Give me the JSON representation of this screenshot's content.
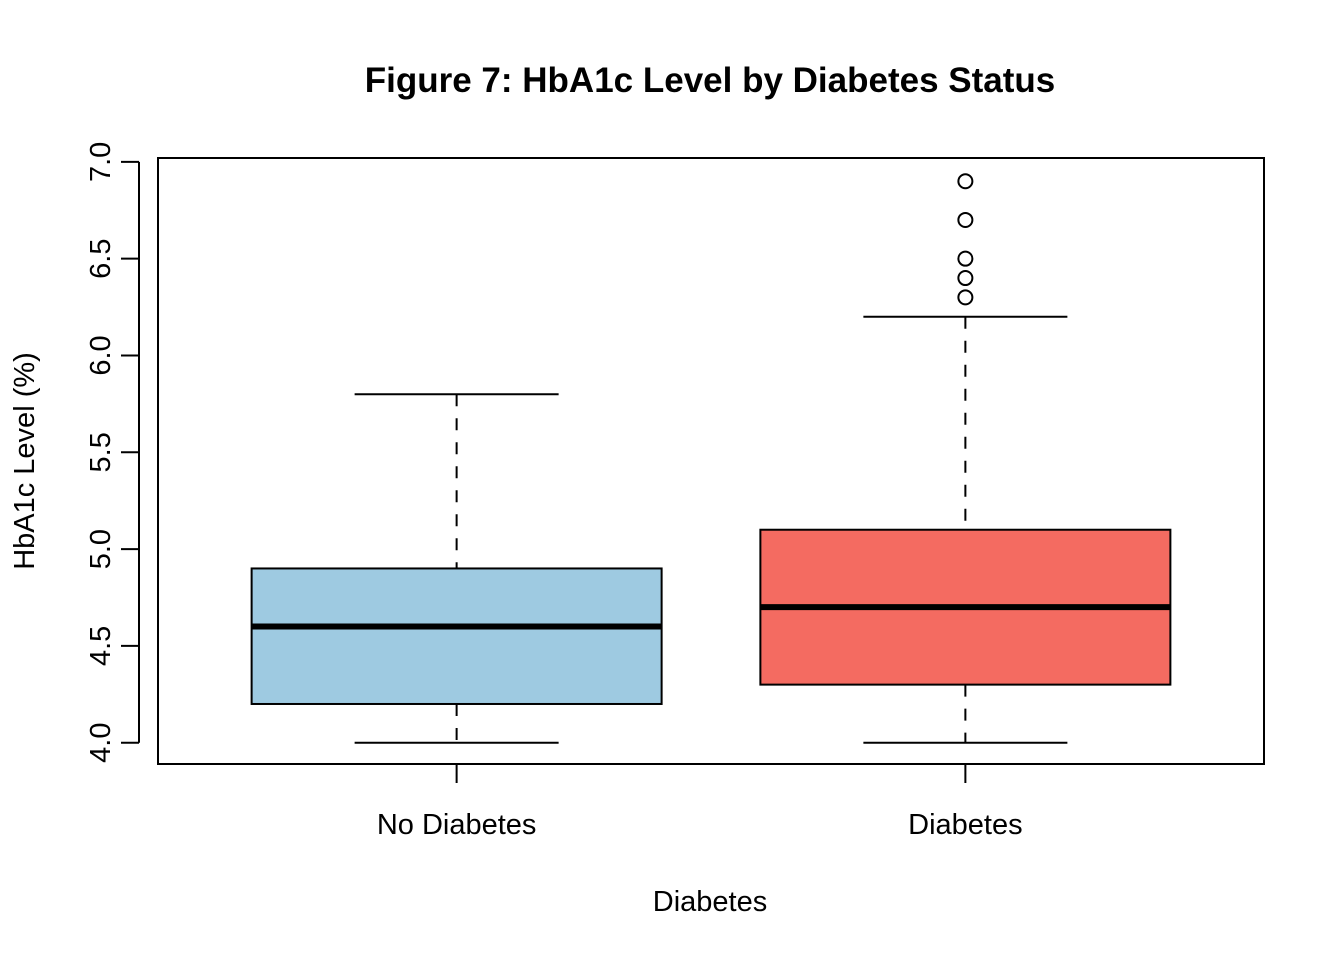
{
  "chart_data": {
    "type": "boxplot",
    "title": "Figure 7: HbA1c Level by Diabetes Status",
    "xlabel": "Diabetes",
    "ylabel": "HbA1c Level (%)",
    "ylim": [
      3.89,
      7.02
    ],
    "yticks": [
      4.0,
      4.5,
      5.0,
      5.5,
      6.0,
      6.5,
      7.0
    ],
    "ytick_labels": [
      "4.0",
      "4.5",
      "5.0",
      "5.5",
      "6.0",
      "6.5",
      "7.0"
    ],
    "categories": [
      "No Diabetes",
      "Diabetes"
    ],
    "grid": false,
    "boxes": [
      {
        "category": "No Diabetes",
        "color": "#9ecae1",
        "whisker_low": 4.0,
        "q1": 4.2,
        "median": 4.6,
        "q3": 4.9,
        "whisker_high": 5.8,
        "outliers": []
      },
      {
        "category": "Diabetes",
        "color": "#f46b61",
        "whisker_low": 4.0,
        "q1": 4.3,
        "median": 4.7,
        "q3": 5.1,
        "whisker_high": 6.2,
        "outliers": [
          6.3,
          6.4,
          6.5,
          6.7,
          6.9
        ]
      }
    ]
  }
}
